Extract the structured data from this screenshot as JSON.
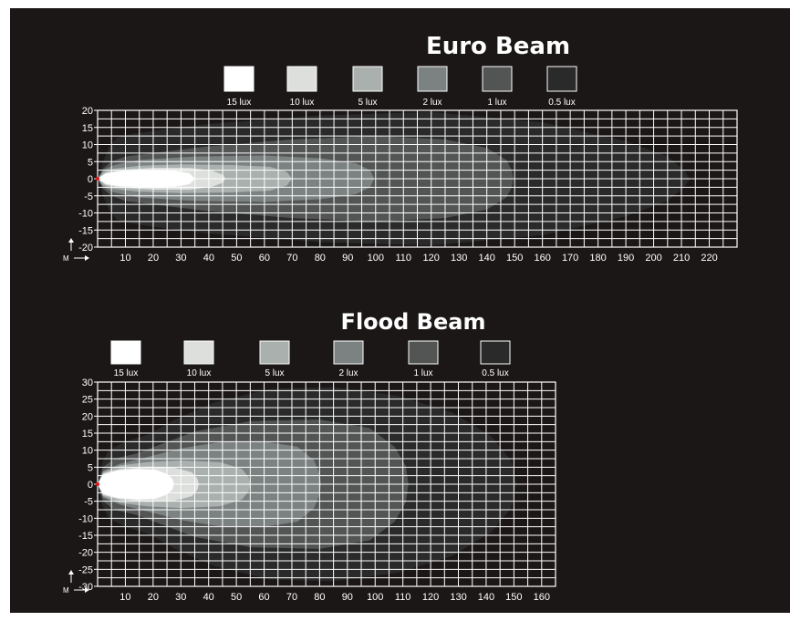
{
  "chart_data": [
    {
      "type": "area",
      "title": "Euro Beam",
      "axis_unit": "M",
      "legend": [
        {
          "label": "15 lux",
          "color": "#ffffff"
        },
        {
          "label": "10 lux",
          "color": "#dcdfdc"
        },
        {
          "label": "5 lux",
          "color": "#a9b0ae"
        },
        {
          "label": "2 lux",
          "color": "#7c8181"
        },
        {
          "label": "1 lux",
          "color": "#525554"
        },
        {
          "label": "0.5 lux",
          "color": "#2a2a2a"
        }
      ],
      "xlim": [
        0,
        230
      ],
      "ylim": [
        -20,
        20
      ],
      "x_ticks": [
        10,
        20,
        30,
        40,
        50,
        60,
        70,
        80,
        90,
        100,
        110,
        120,
        130,
        140,
        150,
        160,
        170,
        180,
        190,
        200,
        210,
        220
      ],
      "y_ticks": [
        20,
        15,
        10,
        5,
        0,
        -5,
        -10,
        -15,
        -20
      ],
      "grid": true,
      "contours": [
        {
          "label": "0.5 lux",
          "color": "#2a2a2a",
          "points": [
            [
              0,
              0
            ],
            [
              2,
              5
            ],
            [
              4,
              9
            ],
            [
              7,
              12
            ],
            [
              12,
              13
            ],
            [
              20,
              14
            ],
            [
              40,
              16
            ],
            [
              80,
              18.5
            ],
            [
              120,
              19.5
            ],
            [
              160,
              16.5
            ],
            [
              190,
              11
            ],
            [
              205,
              6.5
            ],
            [
              211,
              2.5
            ],
            [
              213,
              0
            ],
            [
              211,
              -2.5
            ],
            [
              205,
              -6.5
            ],
            [
              190,
              -11
            ],
            [
              160,
              -16.5
            ],
            [
              120,
              -19.5
            ],
            [
              80,
              -18.5
            ],
            [
              40,
              -16
            ],
            [
              20,
              -14
            ],
            [
              12,
              -13
            ],
            [
              7,
              -12
            ],
            [
              4,
              -9
            ],
            [
              2,
              -5
            ]
          ]
        },
        {
          "label": "1 lux",
          "color": "#525554",
          "points": [
            [
              0,
              0
            ],
            [
              2,
              3
            ],
            [
              5,
              5
            ],
            [
              10,
              6.5
            ],
            [
              20,
              7.5
            ],
            [
              40,
              9.5
            ],
            [
              70,
              11.5
            ],
            [
              100,
              12.5
            ],
            [
              125,
              11.5
            ],
            [
              140,
              9
            ],
            [
              147,
              5.5
            ],
            [
              149,
              2.5
            ],
            [
              149.5,
              0
            ],
            [
              149,
              -2.5
            ],
            [
              147,
              -5.5
            ],
            [
              140,
              -9
            ],
            [
              125,
              -11.5
            ],
            [
              100,
              -12.5
            ],
            [
              70,
              -11.5
            ],
            [
              40,
              -9.5
            ],
            [
              20,
              -7.5
            ],
            [
              10,
              -6.5
            ],
            [
              5,
              -5
            ],
            [
              2,
              -3
            ]
          ]
        },
        {
          "label": "2 lux",
          "color": "#7c8181",
          "points": [
            [
              0,
              0
            ],
            [
              2,
              2.5
            ],
            [
              6,
              4
            ],
            [
              15,
              5.5
            ],
            [
              35,
              6.5
            ],
            [
              60,
              6.8
            ],
            [
              80,
              6
            ],
            [
              93,
              4.5
            ],
            [
              98,
              2.5
            ],
            [
              99.5,
              0
            ],
            [
              98,
              -2.5
            ],
            [
              93,
              -4.5
            ],
            [
              80,
              -6
            ],
            [
              60,
              -6.8
            ],
            [
              35,
              -6.5
            ],
            [
              15,
              -5.5
            ],
            [
              6,
              -4
            ],
            [
              2,
              -2.5
            ]
          ]
        },
        {
          "label": "5 lux",
          "color": "#a9b0ae",
          "points": [
            [
              0,
              0
            ],
            [
              2,
              2
            ],
            [
              6,
              3
            ],
            [
              15,
              3.8
            ],
            [
              30,
              4.2
            ],
            [
              48,
              4
            ],
            [
              62,
              3.5
            ],
            [
              68,
              2
            ],
            [
              70,
              0
            ],
            [
              68,
              -2
            ],
            [
              62,
              -3.5
            ],
            [
              48,
              -4
            ],
            [
              30,
              -4.2
            ],
            [
              15,
              -3.8
            ],
            [
              6,
              -3
            ],
            [
              2,
              -2
            ]
          ]
        },
        {
          "label": "10 lux",
          "color": "#dcdfdc",
          "points": [
            [
              0,
              0
            ],
            [
              3,
              1.8
            ],
            [
              8,
              2.6
            ],
            [
              20,
              3.2
            ],
            [
              33,
              3.2
            ],
            [
              41,
              2.4
            ],
            [
              45,
              1.2
            ],
            [
              46,
              0
            ],
            [
              45,
              -1.2
            ],
            [
              41,
              -2.4
            ],
            [
              33,
              -3.2
            ],
            [
              20,
              -3.2
            ],
            [
              8,
              -2.6
            ],
            [
              3,
              -1.8
            ]
          ]
        },
        {
          "label": "15 lux",
          "color": "#ffffff",
          "points": [
            [
              0,
              0
            ],
            [
              3,
              1.5
            ],
            [
              8,
              2.2
            ],
            [
              18,
              2.5
            ],
            [
              28,
              2.3
            ],
            [
              33,
              1.6
            ],
            [
              35,
              0
            ],
            [
              33,
              -1.6
            ],
            [
              28,
              -2.3
            ],
            [
              18,
              -2.5
            ],
            [
              8,
              -2.2
            ],
            [
              3,
              -1.5
            ]
          ]
        }
      ]
    },
    {
      "type": "area",
      "title": "Flood Beam",
      "axis_unit": "M",
      "legend": [
        {
          "label": "15 lux",
          "color": "#ffffff"
        },
        {
          "label": "10 lux",
          "color": "#dcdfdc"
        },
        {
          "label": "5 lux",
          "color": "#a9b0ae"
        },
        {
          "label": "2 lux",
          "color": "#7c8181"
        },
        {
          "label": "1 lux",
          "color": "#525554"
        },
        {
          "label": "0.5 lux",
          "color": "#2a2a2a"
        }
      ],
      "xlim": [
        0,
        165
      ],
      "ylim": [
        -30,
        30
      ],
      "x_ticks": [
        10,
        20,
        30,
        40,
        50,
        60,
        70,
        80,
        90,
        100,
        110,
        120,
        130,
        140,
        150,
        160
      ],
      "y_ticks": [
        30,
        25,
        20,
        15,
        10,
        5,
        0,
        -5,
        -10,
        -15,
        -20,
        -25,
        -30
      ],
      "grid": true,
      "contours": [
        {
          "label": "0.5 lux",
          "color": "#2a2a2a",
          "points": [
            [
              0,
              0
            ],
            [
              1.5,
              6
            ],
            [
              4,
              10
            ],
            [
              10,
              12.5
            ],
            [
              18,
              14.5
            ],
            [
              28,
              19
            ],
            [
              42,
              24
            ],
            [
              62,
              28
            ],
            [
              85,
              28.5
            ],
            [
              108,
              26
            ],
            [
              128,
              21
            ],
            [
              142,
              14
            ],
            [
              149,
              7
            ],
            [
              151,
              0
            ],
            [
              149,
              -7
            ],
            [
              142,
              -14
            ],
            [
              128,
              -21
            ],
            [
              108,
              -26
            ],
            [
              85,
              -28.5
            ],
            [
              62,
              -28
            ],
            [
              42,
              -24
            ],
            [
              28,
              -19
            ],
            [
              18,
              -14.5
            ],
            [
              10,
              -12.5
            ],
            [
              4,
              -10
            ],
            [
              1.5,
              -6
            ]
          ]
        },
        {
          "label": "1 lux",
          "color": "#525554",
          "points": [
            [
              0,
              0
            ],
            [
              2,
              5
            ],
            [
              6,
              7.5
            ],
            [
              14,
              9
            ],
            [
              22,
              11.5
            ],
            [
              35,
              15.5
            ],
            [
              55,
              18.5
            ],
            [
              80,
              19
            ],
            [
              98,
              16.5
            ],
            [
              107,
              11
            ],
            [
              111,
              5.5
            ],
            [
              112,
              0
            ],
            [
              111,
              -5.5
            ],
            [
              107,
              -11
            ],
            [
              98,
              -16.5
            ],
            [
              80,
              -19
            ],
            [
              55,
              -18.5
            ],
            [
              35,
              -15.5
            ],
            [
              22,
              -11.5
            ],
            [
              14,
              -9
            ],
            [
              6,
              -7.5
            ],
            [
              2,
              -5
            ]
          ]
        },
        {
          "label": "2 lux",
          "color": "#7c8181",
          "points": [
            [
              0,
              0
            ],
            [
              2,
              4
            ],
            [
              8,
              6
            ],
            [
              18,
              8
            ],
            [
              30,
              10.5
            ],
            [
              45,
              12.5
            ],
            [
              60,
              12.5
            ],
            [
              72,
              11
            ],
            [
              78,
              7
            ],
            [
              80,
              3
            ],
            [
              80.5,
              0
            ],
            [
              80,
              -3
            ],
            [
              78,
              -7
            ],
            [
              72,
              -11
            ],
            [
              60,
              -12.5
            ],
            [
              45,
              -12.5
            ],
            [
              30,
              -10.5
            ],
            [
              18,
              -8
            ],
            [
              8,
              -6
            ],
            [
              2,
              -4
            ]
          ]
        },
        {
          "label": "5 lux",
          "color": "#a9b0ae",
          "points": [
            [
              0,
              0
            ],
            [
              2,
              3.5
            ],
            [
              8,
              5.5
            ],
            [
              18,
              6.5
            ],
            [
              30,
              7
            ],
            [
              44,
              6.5
            ],
            [
              52,
              4.5
            ],
            [
              54.5,
              2
            ],
            [
              55,
              0
            ],
            [
              54.5,
              -2
            ],
            [
              52,
              -4.5
            ],
            [
              44,
              -6.5
            ],
            [
              30,
              -7
            ],
            [
              18,
              -6.5
            ],
            [
              8,
              -5.5
            ],
            [
              2,
              -3.5
            ]
          ]
        },
        {
          "label": "10 lux",
          "color": "#dcdfdc",
          "points": [
            [
              0,
              0
            ],
            [
              2,
              3.2
            ],
            [
              8,
              4.5
            ],
            [
              18,
              5.2
            ],
            [
              28,
              4.8
            ],
            [
              34,
              3.5
            ],
            [
              36,
              1.6
            ],
            [
              36.5,
              0
            ],
            [
              36,
              -1.6
            ],
            [
              34,
              -3.5
            ],
            [
              28,
              -4.8
            ],
            [
              18,
              -5.2
            ],
            [
              8,
              -4.5
            ],
            [
              2,
              -3.2
            ]
          ]
        },
        {
          "label": "15 lux",
          "color": "#ffffff",
          "points": [
            [
              0,
              0
            ],
            [
              2,
              2.8
            ],
            [
              7,
              4
            ],
            [
              14,
              4.5
            ],
            [
              21,
              4.2
            ],
            [
              25,
              3
            ],
            [
              27,
              1.5
            ],
            [
              27.5,
              0
            ],
            [
              27,
              -1.5
            ],
            [
              25,
              -3
            ],
            [
              21,
              -4.2
            ],
            [
              14,
              -4.5
            ],
            [
              7,
              -4
            ],
            [
              2,
              -2.8
            ]
          ]
        }
      ]
    }
  ]
}
